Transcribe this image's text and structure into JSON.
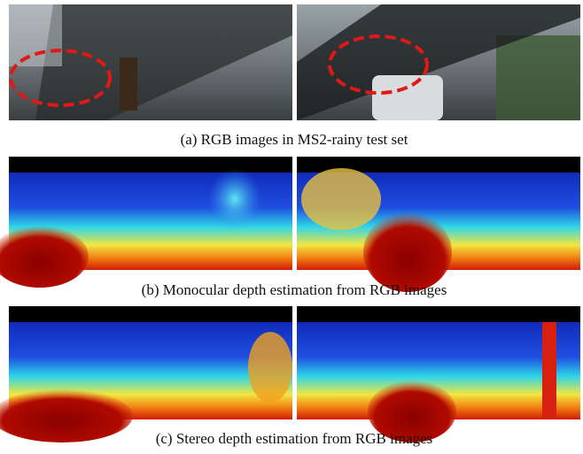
{
  "figure": {
    "panels": [
      {
        "caption": "(a) RGB images in MS2-rainy test set"
      },
      {
        "caption": "(b) Monocular depth estimation from RGB images"
      },
      {
        "caption": "(c) Stereo depth estimation from RGB images"
      }
    ]
  }
}
